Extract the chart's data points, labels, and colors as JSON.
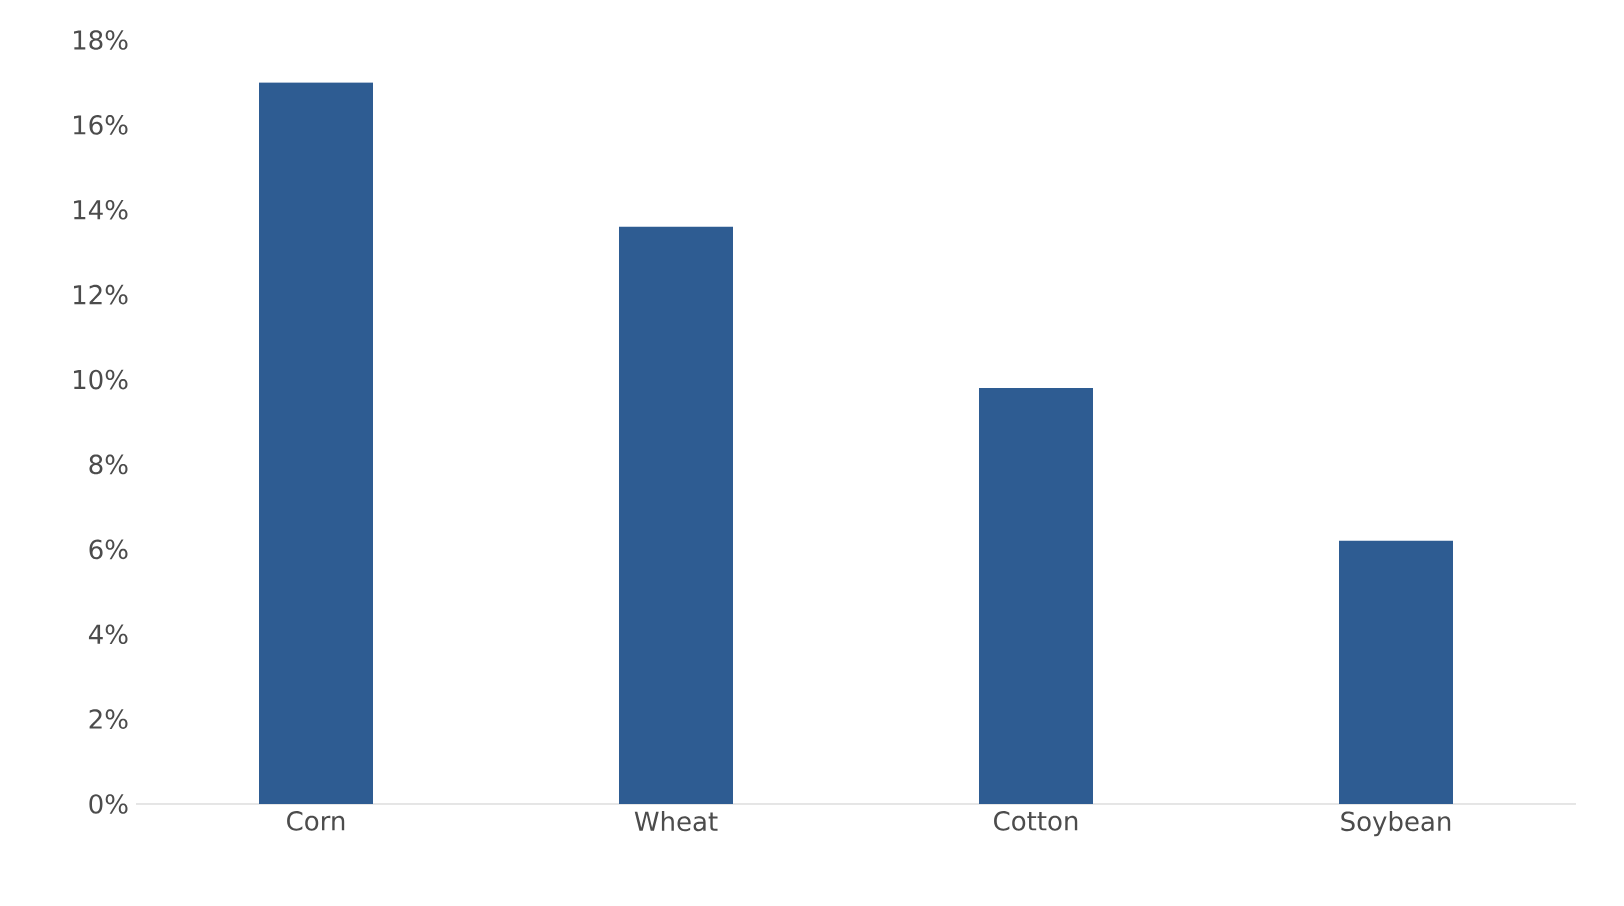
{
  "chart_data": {
    "type": "bar",
    "categories": [
      "Corn",
      "Wheat",
      "Cotton",
      "Soybean"
    ],
    "values": [
      17,
      13.6,
      9.8,
      6.2
    ],
    "color": "#2e5c92",
    "ylim": [
      0,
      18
    ],
    "yticks": [
      {
        "value": 0,
        "label": "0%"
      },
      {
        "value": 2,
        "label": "2%"
      },
      {
        "value": 4,
        "label": "4%"
      },
      {
        "value": 6,
        "label": "6%"
      },
      {
        "value": 8,
        "label": "8%"
      },
      {
        "value": 10,
        "label": "10%"
      },
      {
        "value": 12,
        "label": "12%"
      },
      {
        "value": 14,
        "label": "14%"
      },
      {
        "value": 16,
        "label": "16%"
      },
      {
        "value": 18,
        "label": "18%"
      }
    ]
  }
}
